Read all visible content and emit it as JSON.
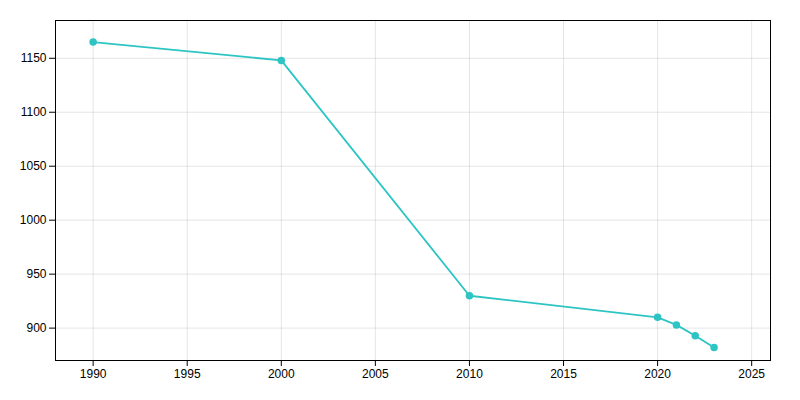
{
  "chart_data": {
    "type": "line",
    "x": [
      1990,
      2000,
      2010,
      2020,
      2021,
      2022,
      2023
    ],
    "values": [
      1165,
      1148,
      930,
      910,
      903,
      893,
      882
    ],
    "color": "#2ec4c4",
    "marker": "circle",
    "xlim": [
      1988,
      2026
    ],
    "ylim": [
      870,
      1185
    ],
    "xticks": [
      1990,
      1995,
      2000,
      2005,
      2010,
      2015,
      2020,
      2025
    ],
    "yticks": [
      900,
      950,
      1000,
      1050,
      1100,
      1150
    ],
    "grid": true
  }
}
